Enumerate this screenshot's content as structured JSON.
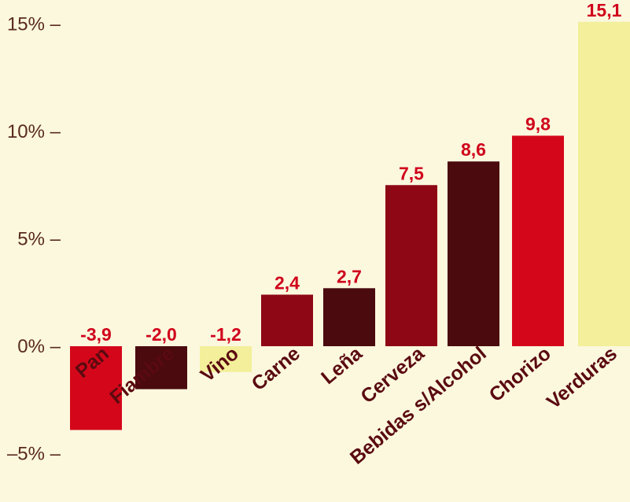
{
  "chart_data": {
    "type": "bar",
    "categories": [
      "Pan",
      "Fiambre",
      "Vino",
      "Carne",
      "Leña",
      "Cerveza",
      "Bebidas s/Alcohol",
      "Chorizo",
      "Verduras"
    ],
    "values": [
      -3.9,
      -2.0,
      -1.2,
      2.4,
      2.7,
      7.5,
      8.6,
      9.8,
      15.1
    ],
    "value_labels": [
      "-3,9",
      "-2,0",
      "-1,2",
      "2,4",
      "2,7",
      "7,5",
      "8,6",
      "9,8",
      "15,1"
    ],
    "bar_colors": [
      "#d4071a",
      "#4a0a0e",
      "#f3ef9a",
      "#8e0714",
      "#4a0a0e",
      "#8e0714",
      "#4a0a0e",
      "#d4071a",
      "#f3ef9a"
    ],
    "yticks": [
      15,
      10,
      5,
      0,
      -5
    ],
    "ytick_labels": [
      "15% –",
      "10% –",
      "5% –",
      "0% –",
      "–5% –"
    ],
    "ylim": [
      -5,
      15
    ],
    "title": "",
    "xlabel": "",
    "ylabel": "",
    "grid": false,
    "legend": "none"
  },
  "colors": {
    "background": "#fbf8de",
    "value_label": "#d0021b",
    "category_label": "#5a0a10",
    "tick_label": "#5a2a1f"
  }
}
